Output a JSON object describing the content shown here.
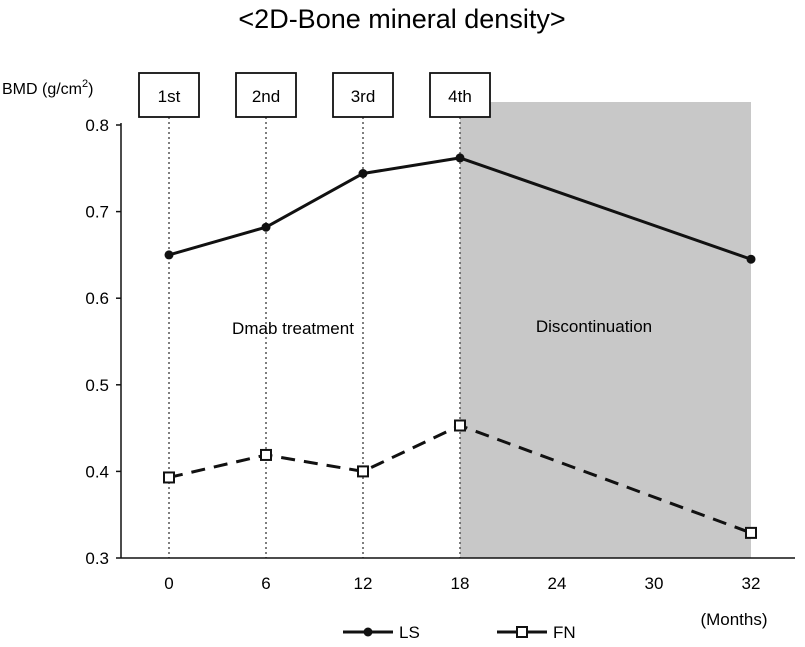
{
  "chart_data": {
    "type": "line",
    "title": "<2D-Bone mineral density>",
    "ylabel": "BMD (g/cm",
    "ylabel_sup": "2",
    "ylabel_close": ")",
    "xlabel": "(Months)",
    "ylim": [
      0.3,
      0.8
    ],
    "yticks": [
      0.3,
      0.4,
      0.5,
      0.6,
      0.7,
      0.8
    ],
    "ytick_labels": [
      "0.3",
      "0.4",
      "0.5",
      "0.6",
      "0.7",
      "0.8"
    ],
    "xticks": [
      0,
      6,
      12,
      18,
      24,
      30,
      32
    ],
    "xtick_labels": [
      "0",
      "6",
      "12",
      "18",
      "24",
      "30",
      "32"
    ],
    "series": [
      {
        "name": "LS",
        "x": [
          0,
          6,
          12,
          18,
          32
        ],
        "values": [
          0.65,
          0.682,
          0.744,
          0.762,
          0.645
        ],
        "style": "solid",
        "marker": "filled-circle"
      },
      {
        "name": "FN",
        "x": [
          0,
          6,
          12,
          18,
          32
        ],
        "values": [
          0.393,
          0.419,
          0.4,
          0.453,
          0.329
        ],
        "style": "dashed",
        "marker": "open-square"
      }
    ],
    "doses": [
      {
        "label": "1st",
        "x": 0
      },
      {
        "label": "2nd",
        "x": 6
      },
      {
        "label": "3rd",
        "x": 12
      },
      {
        "label": "4th",
        "x": 18
      }
    ],
    "shaded_region": {
      "x_start": 18,
      "x_end": 32,
      "color": "#c8c8c8"
    },
    "annotations": {
      "treatment": "Dmab treatment",
      "discontinuation": "Discontinuation"
    },
    "legend": {
      "placement": "bottom-center",
      "entries": [
        "LS",
        "FN"
      ]
    },
    "grid": false
  }
}
